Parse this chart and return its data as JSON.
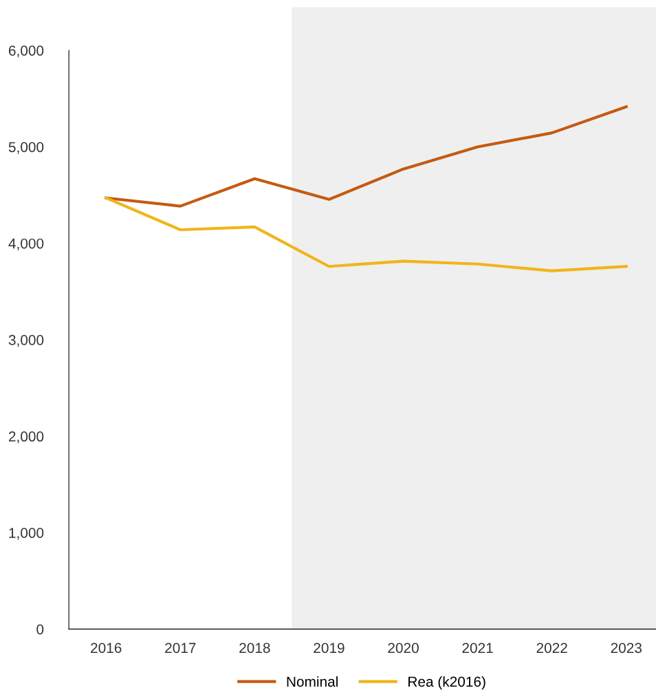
{
  "chart_data": {
    "type": "line",
    "x": [
      2016,
      2017,
      2018,
      2019,
      2020,
      2021,
      2022,
      2023
    ],
    "series": [
      {
        "name": "Nominal",
        "color": "#c55a11",
        "values": [
          4470,
          4385,
          4670,
          4455,
          4770,
          5000,
          5145,
          5415
        ]
      },
      {
        "name": "Rea (k2016)",
        "color": "#f2b419",
        "values": [
          4470,
          4140,
          4170,
          3760,
          3815,
          3785,
          3715,
          3760
        ]
      }
    ],
    "xlim": [
      2015.5,
      2023.4
    ],
    "xticks": [
      2016,
      2017,
      2018,
      2019,
      2020,
      2021,
      2022,
      2023
    ],
    "ylim": [
      0,
      6450
    ],
    "yticks": [
      0,
      {
        "value": 1000,
        "label": "1,000"
      },
      {
        "value": 2000,
        "label": "2,000"
      },
      {
        "value": 3000,
        "label": "3,000"
      },
      {
        "value": 4000,
        "label": "4,000"
      },
      {
        "value": 5000,
        "label": "5,000"
      },
      {
        "value": 6000,
        "label": "6,000"
      }
    ],
    "bands": [
      {
        "axis": "x",
        "from": 2018.5,
        "to": 2023.4,
        "color": "#efefef"
      }
    ],
    "grid": false,
    "legend": "bottom",
    "marker": "none",
    "line_style": "solid"
  }
}
